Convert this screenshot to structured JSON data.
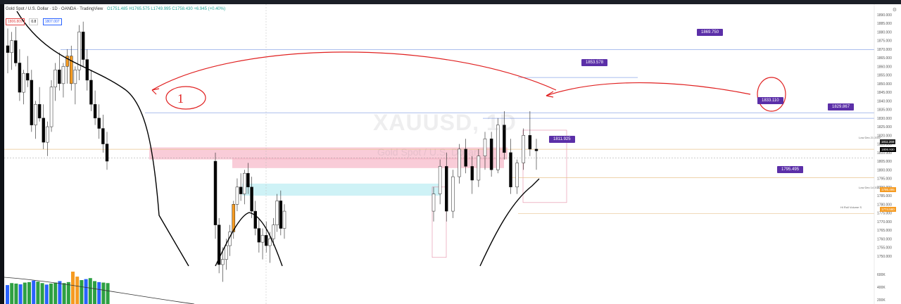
{
  "header": {
    "symbol": "Gold Spot / U.S. Dollar · 1D · OANDA · TradingView",
    "ohlc": "O1751.485 H1765.575 L1749.995 C1758.430 +6.945 (+0.40%)",
    "sell_price": "1806.809",
    "spread": "0.8",
    "buy_price": "1807.007"
  },
  "watermark": {
    "symbol": "XAUUSD, 1D",
    "description": "Gold Spot / U.S. Dollar"
  },
  "levels": {
    "l1869": "1869.750",
    "l1853": "1853.578",
    "l1833": "1833.110",
    "l1829": "1829.867",
    "l1811": "1811.925",
    "l1795": "1795.495"
  },
  "notes": {
    "low_dec21": "Low Dec 21 2022",
    "low_dec14": "Low Dec 14 2022",
    "vol": "Hi Roll Volume S"
  },
  "axis_tags": {
    "current": "1811.269",
    "cross": "1806.930",
    "t1795": "1795.495",
    "t1774": "1774.580"
  },
  "ui": {
    "gear": "⚙"
  },
  "colors": {
    "up": "#ffffff",
    "down": "#000000",
    "highlight": "#f59b22",
    "level_tag": "#5b2fa8",
    "zone_pink": "#f7b6c8",
    "zone_cyan": "#b9ecf2",
    "ma": "#000000",
    "annotation": "#e02020",
    "vol_green": "#2ea043",
    "vol_blue": "#2962ff",
    "vol_orange": "#f59b22"
  },
  "chart_data": {
    "type": "candlestick",
    "symbol": "XAUUSD",
    "timeframe": "1D",
    "price_axis": {
      "ticks": [
        1750,
        1755,
        1760,
        1765,
        1770,
        1775,
        1780,
        1785,
        1790,
        1795,
        1800,
        1805,
        1810,
        1815,
        1820,
        1825,
        1830,
        1835,
        1840,
        1845,
        1850,
        1855,
        1860,
        1865,
        1870,
        1875,
        1880,
        1885,
        1890
      ],
      "ylim": [
        1745,
        1892
      ]
    },
    "volume_axis": {
      "ticks": [
        "600K",
        "400K",
        "200K"
      ]
    },
    "levels": [
      1869.75,
      1853.578,
      1833.11,
      1829.867,
      1811.925,
      1795.495,
      1774.58
    ],
    "zones": [
      {
        "type": "supply",
        "from": 1806,
        "to": 1813
      },
      {
        "type": "supply",
        "from": 1801,
        "to": 1807
      },
      {
        "type": "demand",
        "from": 1785,
        "to": 1792
      }
    ],
    "candles": [
      [
        1872,
        1882,
        1856,
        1868
      ],
      [
        1868,
        1880,
        1858,
        1875
      ],
      [
        1875,
        1883,
        1860,
        1862
      ],
      [
        1862,
        1870,
        1840,
        1845
      ],
      [
        1845,
        1858,
        1838,
        1856
      ],
      [
        1856,
        1866,
        1848,
        1852
      ],
      [
        1852,
        1858,
        1822,
        1826
      ],
      [
        1826,
        1840,
        1818,
        1838
      ],
      [
        1838,
        1848,
        1828,
        1830
      ],
      [
        1830,
        1838,
        1812,
        1816
      ],
      [
        1816,
        1828,
        1808,
        1825
      ],
      [
        1825,
        1852,
        1822,
        1848
      ],
      [
        1848,
        1862,
        1840,
        1858
      ],
      [
        1858,
        1868,
        1846,
        1850
      ],
      [
        1850,
        1862,
        1842,
        1860
      ],
      [
        1860,
        1870,
        1850,
        1866
      ],
      [
        1866,
        1872,
        1846,
        1850
      ],
      [
        1850,
        1860,
        1838,
        1858
      ],
      [
        1858,
        1884,
        1852,
        1880
      ],
      [
        1880,
        1886,
        1860,
        1864
      ],
      [
        1864,
        1870,
        1846,
        1852
      ],
      [
        1852,
        1858,
        1834,
        1838
      ],
      [
        1838,
        1846,
        1826,
        1830
      ],
      [
        1830,
        1838,
        1818,
        1824
      ],
      [
        1824,
        1832,
        1810,
        1815
      ],
      [
        1815,
        1822,
        1800,
        1805
      ],
      [
        1805,
        1810,
        1760,
        1768
      ],
      [
        1768,
        1772,
        1740,
        1745
      ],
      [
        1745,
        1755,
        1735,
        1748
      ],
      [
        1748,
        1760,
        1742,
        1756
      ],
      [
        1756,
        1768,
        1750,
        1764
      ],
      [
        1764,
        1782,
        1760,
        1780
      ],
      [
        1780,
        1795,
        1776,
        1790
      ],
      [
        1790,
        1798,
        1782,
        1786
      ],
      [
        1786,
        1800,
        1780,
        1798
      ],
      [
        1798,
        1804,
        1786,
        1790
      ],
      [
        1790,
        1796,
        1772,
        1776
      ],
      [
        1776,
        1782,
        1762,
        1766
      ],
      [
        1766,
        1772,
        1752,
        1758
      ],
      [
        1758,
        1766,
        1748,
        1762
      ],
      [
        1762,
        1770,
        1752,
        1756
      ],
      [
        1756,
        1764,
        1746,
        1760
      ],
      [
        1760,
        1772,
        1756,
        1768
      ],
      [
        1768,
        1786,
        1764,
        1782
      ],
      [
        1782,
        1788,
        1762,
        1766
      ],
      [
        1766,
        1780,
        1760,
        1776
      ],
      [
        1776,
        1790,
        1770,
        1786
      ],
      [
        1786,
        1806,
        1780,
        1802
      ],
      [
        1802,
        1810,
        1770,
        1776
      ],
      [
        1776,
        1800,
        1772,
        1796
      ],
      [
        1796,
        1815,
        1792,
        1812
      ],
      [
        1812,
        1818,
        1798,
        1802
      ],
      [
        1802,
        1808,
        1786,
        1794
      ],
      [
        1794,
        1812,
        1790,
        1808
      ],
      [
        1808,
        1822,
        1800,
        1818
      ],
      [
        1818,
        1822,
        1796,
        1800
      ],
      [
        1800,
        1830,
        1798,
        1826
      ],
      [
        1826,
        1834,
        1806,
        1810
      ],
      [
        1810,
        1818,
        1786,
        1790
      ],
      [
        1790,
        1806,
        1786,
        1804
      ],
      [
        1804,
        1824,
        1800,
        1820
      ],
      [
        1820,
        1834,
        1808,
        1812
      ],
      [
        1812,
        1818,
        1800,
        1811
      ]
    ],
    "volume": [
      380,
      420,
      410,
      395,
      430,
      440,
      470,
      450,
      420,
      390,
      410,
      430,
      460,
      420,
      440,
      650,
      550,
      480,
      500,
      520,
      460,
      440,
      430,
      420
    ]
  }
}
